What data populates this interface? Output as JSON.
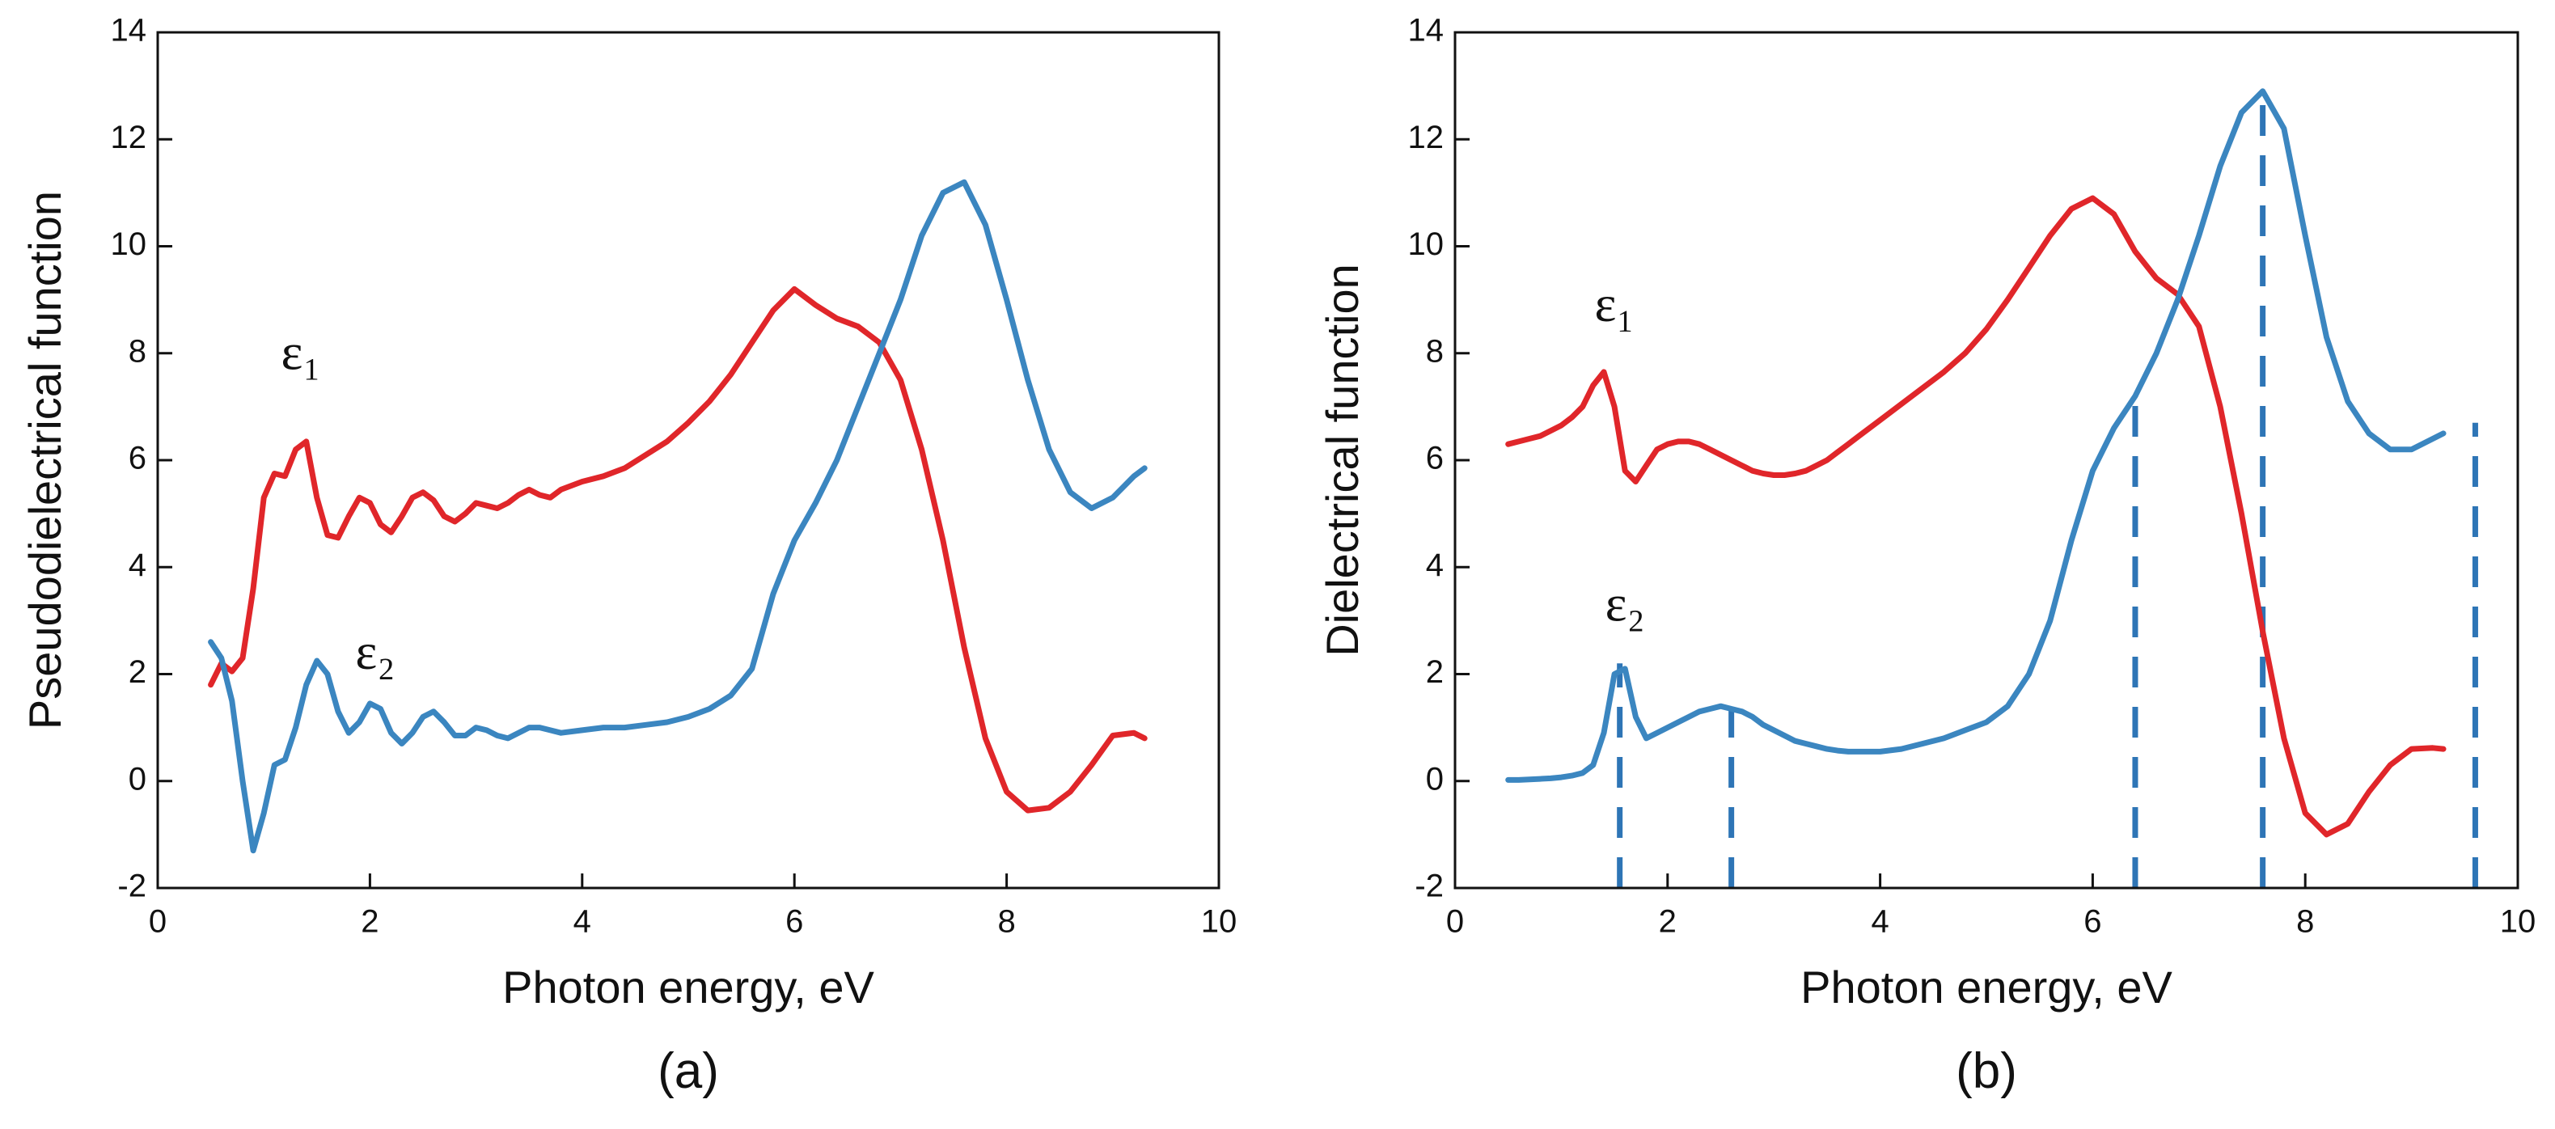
{
  "chart_data": [
    {
      "type": "line",
      "caption": "(a)",
      "xlabel": "Photon energy, eV",
      "ylabel": "Pseudodielectrical function",
      "xlim": [
        0,
        10
      ],
      "ylim": [
        -2,
        14
      ],
      "xticks": [
        0,
        2,
        4,
        6,
        8,
        10
      ],
      "yticks": [
        -2,
        0,
        2,
        4,
        6,
        8,
        10,
        12,
        14
      ],
      "x": [
        0.5,
        0.6,
        0.7,
        0.8,
        0.9,
        1.0,
        1.1,
        1.2,
        1.3,
        1.4,
        1.5,
        1.6,
        1.7,
        1.8,
        1.9,
        2.0,
        2.1,
        2.2,
        2.3,
        2.4,
        2.5,
        2.6,
        2.7,
        2.8,
        2.9,
        3.0,
        3.1,
        3.2,
        3.3,
        3.4,
        3.5,
        3.6,
        3.7,
        3.8,
        4.0,
        4.2,
        4.4,
        4.6,
        4.8,
        5.0,
        5.2,
        5.4,
        5.6,
        5.8,
        6.0,
        6.2,
        6.4,
        6.6,
        6.8,
        7.0,
        7.2,
        7.4,
        7.6,
        7.8,
        8.0,
        8.2,
        8.4,
        8.6,
        8.8,
        9.0,
        9.2,
        9.3
      ],
      "series": [
        {
          "color": "#e0262a",
          "values": [
            1.8,
            2.2,
            2.05,
            2.3,
            3.6,
            5.3,
            5.75,
            5.7,
            6.2,
            6.35,
            5.3,
            4.6,
            4.55,
            4.95,
            5.3,
            5.2,
            4.8,
            4.65,
            4.95,
            5.3,
            5.4,
            5.25,
            4.95,
            4.85,
            5.0,
            5.2,
            5.15,
            5.1,
            5.2,
            5.35,
            5.45,
            5.35,
            5.3,
            5.45,
            5.6,
            5.7,
            5.85,
            6.1,
            6.35,
            6.7,
            7.1,
            7.6,
            8.2,
            8.8,
            9.2,
            8.9,
            8.65,
            8.5,
            8.2,
            7.5,
            6.2,
            4.5,
            2.5,
            0.8,
            -0.2,
            -0.55,
            -0.5,
            -0.2,
            0.3,
            0.85,
            0.9,
            0.8
          ]
        },
        {
          "color": "#3b86c0",
          "values": [
            2.6,
            2.3,
            1.5,
            0.0,
            -1.3,
            -0.6,
            0.3,
            0.4,
            1.0,
            1.8,
            2.25,
            2.0,
            1.3,
            0.9,
            1.1,
            1.45,
            1.35,
            0.9,
            0.7,
            0.9,
            1.2,
            1.3,
            1.1,
            0.85,
            0.85,
            1.0,
            0.95,
            0.85,
            0.8,
            0.9,
            1.0,
            1.0,
            0.95,
            0.9,
            0.95,
            1.0,
            1.0,
            1.05,
            1.1,
            1.2,
            1.35,
            1.6,
            2.1,
            3.5,
            4.5,
            5.2,
            6.0,
            7.0,
            8.0,
            9.0,
            10.2,
            11.0,
            11.2,
            10.4,
            9.0,
            7.5,
            6.2,
            5.4,
            5.1,
            5.3,
            5.7,
            5.85
          ]
        }
      ],
      "annotations": [
        "ε₁",
        "ε₂"
      ]
    },
    {
      "type": "line",
      "caption": "(b)",
      "xlabel": "Photon energy, eV",
      "ylabel": "Dielectrical function",
      "xlim": [
        0,
        10
      ],
      "ylim": [
        -2,
        14
      ],
      "xticks": [
        0,
        2,
        4,
        6,
        8,
        10
      ],
      "yticks": [
        -2,
        0,
        2,
        4,
        6,
        8,
        10,
        12,
        14
      ],
      "x": [
        0.5,
        0.6,
        0.7,
        0.8,
        0.9,
        1.0,
        1.1,
        1.2,
        1.3,
        1.4,
        1.5,
        1.6,
        1.7,
        1.8,
        1.9,
        2.0,
        2.1,
        2.2,
        2.3,
        2.4,
        2.5,
        2.6,
        2.7,
        2.8,
        2.9,
        3.0,
        3.1,
        3.2,
        3.3,
        3.4,
        3.5,
        3.6,
        3.7,
        3.8,
        4.0,
        4.2,
        4.4,
        4.6,
        4.8,
        5.0,
        5.2,
        5.4,
        5.6,
        5.8,
        6.0,
        6.2,
        6.4,
        6.6,
        6.8,
        7.0,
        7.2,
        7.4,
        7.6,
        7.8,
        8.0,
        8.2,
        8.4,
        8.6,
        8.8,
        9.0,
        9.2,
        9.3
      ],
      "series": [
        {
          "color": "#e0262a",
          "values": [
            6.3,
            6.35,
            6.4,
            6.45,
            6.55,
            6.65,
            6.8,
            7.0,
            7.4,
            7.65,
            7.0,
            5.8,
            5.6,
            5.9,
            6.2,
            6.3,
            6.35,
            6.35,
            6.3,
            6.2,
            6.1,
            6.0,
            5.9,
            5.8,
            5.75,
            5.72,
            5.72,
            5.75,
            5.8,
            5.9,
            6.0,
            6.15,
            6.3,
            6.45,
            6.75,
            7.05,
            7.35,
            7.65,
            8.0,
            8.45,
            9.0,
            9.6,
            10.2,
            10.7,
            10.9,
            10.6,
            9.9,
            9.4,
            9.1,
            8.5,
            7.0,
            5.0,
            2.8,
            0.8,
            -0.6,
            -1.0,
            -0.8,
            -0.2,
            0.3,
            0.6,
            0.62,
            0.6
          ]
        },
        {
          "color": "#3b86c0",
          "values": [
            0.02,
            0.02,
            0.03,
            0.04,
            0.05,
            0.07,
            0.1,
            0.15,
            0.3,
            0.9,
            2.0,
            2.1,
            1.2,
            0.8,
            0.9,
            1.0,
            1.1,
            1.2,
            1.3,
            1.35,
            1.4,
            1.35,
            1.3,
            1.2,
            1.05,
            0.95,
            0.85,
            0.75,
            0.7,
            0.65,
            0.6,
            0.57,
            0.55,
            0.55,
            0.55,
            0.6,
            0.7,
            0.8,
            0.95,
            1.1,
            1.4,
            2.0,
            3.0,
            4.5,
            5.8,
            6.6,
            7.2,
            8.0,
            9.0,
            10.2,
            11.5,
            12.5,
            12.9,
            12.2,
            10.2,
            8.3,
            7.1,
            6.5,
            6.2,
            6.2,
            6.4,
            6.5
          ]
        }
      ],
      "dashed_lines": {
        "color": "#2e75b6",
        "x": [
          1.55,
          2.6,
          6.4,
          7.6,
          9.6
        ],
        "y": [
          2.2,
          1.4,
          7.1,
          12.9,
          6.7
        ]
      },
      "annotations": [
        "ε₁",
        "ε₂"
      ]
    }
  ]
}
